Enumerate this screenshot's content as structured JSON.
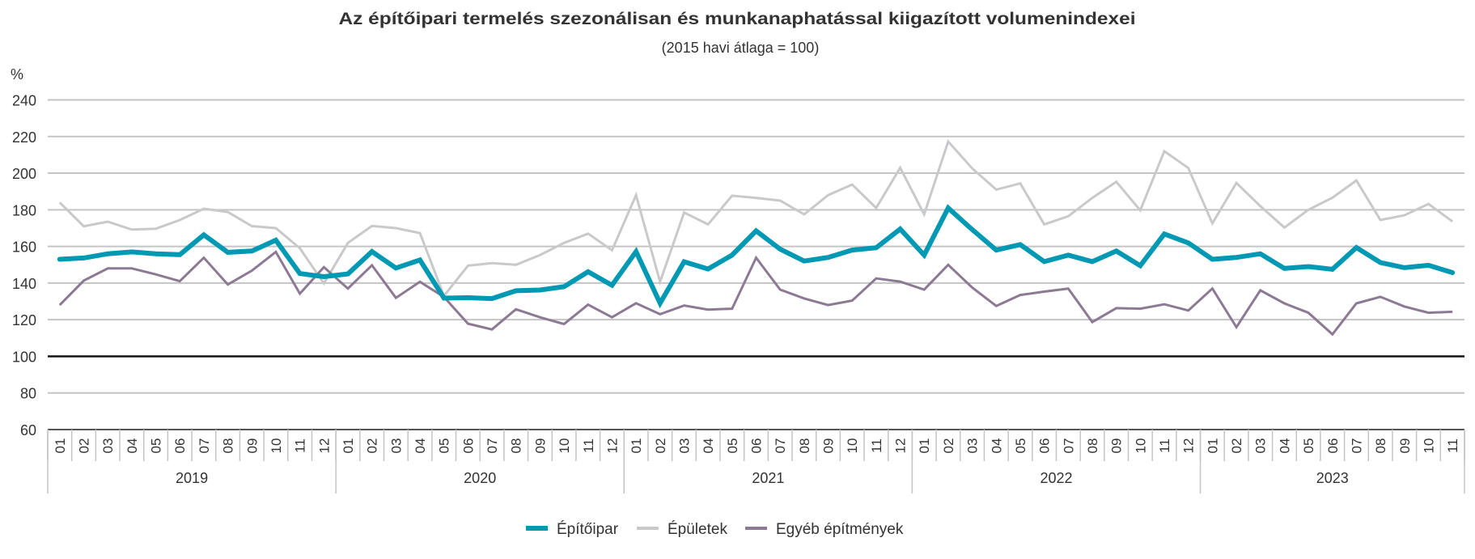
{
  "chart_data": {
    "type": "line",
    "title": "Az építőipari termelés szezonálisan és munkanaphatással kiigazított volumenindexei",
    "subtitle": "(2015 havi átlaga = 100)",
    "ylabel": "%",
    "xlabel": "",
    "ylim": [
      60,
      240
    ],
    "yticks": [
      60,
      80,
      100,
      120,
      140,
      160,
      180,
      200,
      220,
      240
    ],
    "reference_line": 100,
    "grid": true,
    "legend_position": "bottom",
    "years": [
      {
        "label": "2019",
        "months": 12
      },
      {
        "label": "2020",
        "months": 12
      },
      {
        "label": "2021",
        "months": 12
      },
      {
        "label": "2022",
        "months": 12
      },
      {
        "label": "2023",
        "months": 11
      }
    ],
    "categories": [
      "01",
      "02",
      "03",
      "04",
      "05",
      "06",
      "07",
      "08",
      "09",
      "10",
      "11",
      "12",
      "01",
      "02",
      "03",
      "04",
      "05",
      "06",
      "07",
      "08",
      "09",
      "10",
      "11",
      "12",
      "01",
      "02",
      "03",
      "04",
      "05",
      "06",
      "07",
      "08",
      "09",
      "10",
      "11",
      "12",
      "01",
      "02",
      "03",
      "04",
      "05",
      "06",
      "07",
      "08",
      "09",
      "10",
      "11",
      "12",
      "01",
      "02",
      "03",
      "04",
      "05",
      "06",
      "07",
      "08",
      "09",
      "10",
      "11"
    ],
    "series": [
      {
        "name": "Építőipar",
        "color": "#0099B4",
        "width": 6,
        "values": [
          153.0,
          153.7,
          156.0,
          157.0,
          156.0,
          155.5,
          166.3,
          156.8,
          157.5,
          163.4,
          145.2,
          143.5,
          145.0,
          157.2,
          148.2,
          152.6,
          131.8,
          132.0,
          131.5,
          135.8,
          136.2,
          138.0,
          146.2,
          138.8,
          157.2,
          129.0,
          151.6,
          147.7,
          155.3,
          168.5,
          158.5,
          152.0,
          154.0,
          158.0,
          159.3,
          169.5,
          155.3,
          181.0,
          169.2,
          158.0,
          161.0,
          151.7,
          155.3,
          151.7,
          157.5,
          149.5,
          166.8,
          161.9,
          153.0,
          154.0,
          156.0,
          148.0,
          149.0,
          147.5,
          159.4,
          151.2,
          148.4,
          149.7,
          145.7
        ]
      },
      {
        "name": "Épületek",
        "color": "#C8C9CB",
        "width": 3,
        "values": [
          184.0,
          171.0,
          173.5,
          169.2,
          169.7,
          174.4,
          180.6,
          178.8,
          171.1,
          170.0,
          159.0,
          139.8,
          161.9,
          171.2,
          170.0,
          167.3,
          133.0,
          149.5,
          150.9,
          150.0,
          155.3,
          161.9,
          167.0,
          157.9,
          188.0,
          140.6,
          178.5,
          172.0,
          187.7,
          186.5,
          185.0,
          177.5,
          188.0,
          193.8,
          181.0,
          203.0,
          177.5,
          217.3,
          202.6,
          191.0,
          194.4,
          172.0,
          176.5,
          186.5,
          195.3,
          179.7,
          212.0,
          202.8,
          172.6,
          194.7,
          182.0,
          170.3,
          180.0,
          186.6,
          196.0,
          174.4,
          177.0,
          183.2,
          173.6
        ]
      },
      {
        "name": "Egyéb építmények",
        "color": "#8C7A94",
        "width": 3,
        "values": [
          128.0,
          141.3,
          148.0,
          148.0,
          144.7,
          141.0,
          153.8,
          139.2,
          146.8,
          157.0,
          134.2,
          148.7,
          137.0,
          149.7,
          131.9,
          140.7,
          132.4,
          117.8,
          114.7,
          125.7,
          121.3,
          117.6,
          128.2,
          121.3,
          129.0,
          123.0,
          127.7,
          125.5,
          126.0,
          153.8,
          136.4,
          131.6,
          128.0,
          130.4,
          142.5,
          140.8,
          136.4,
          150.0,
          137.5,
          127.5,
          133.5,
          135.3,
          137.0,
          118.7,
          126.3,
          126.0,
          128.4,
          125.0,
          137.0,
          115.9,
          136.0,
          128.9,
          123.8,
          112.0,
          128.9,
          132.5,
          127.2,
          123.8,
          124.3
        ]
      }
    ]
  }
}
